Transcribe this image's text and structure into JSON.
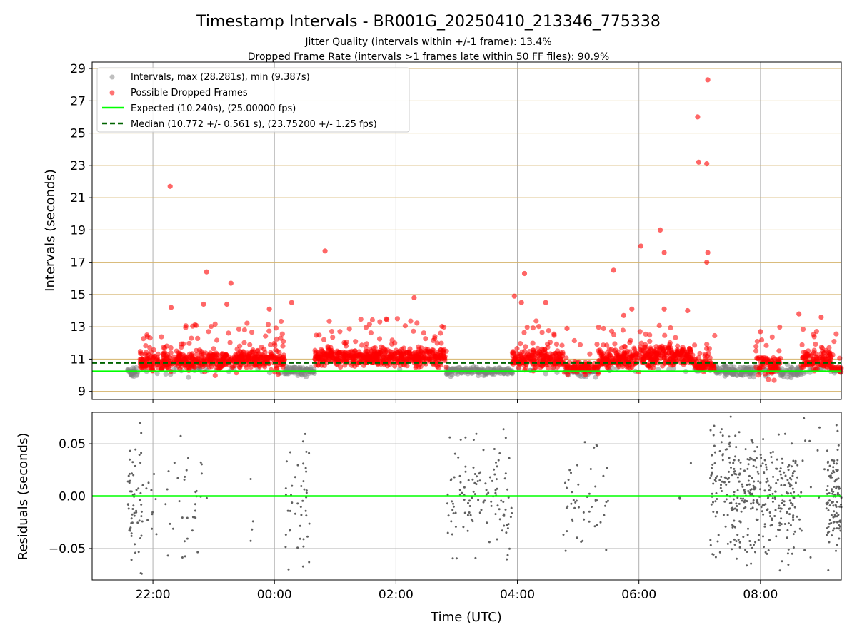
{
  "figure": {
    "title": "Timestamp Intervals - BR001G_20250410_213346_775338",
    "subtitle_1": "Jitter Quality (intervals within +/-1 frame): 13.4%",
    "subtitle_2": "Dropped Frame Rate (intervals >1 frames late within 50 FF files): 90.9%"
  },
  "colors": {
    "intervals": "#808080",
    "dropped": "#ff0000",
    "expected": "#00ff00",
    "median": "#006400",
    "hgrid_top": "#d4b26a",
    "grid": "#b0b0b0",
    "residuals": "#606060"
  },
  "chart_data": [
    {
      "type": "scatter",
      "ylabel": "Intervals (seconds)",
      "xlim_hours": [
        21.0,
        33.33
      ],
      "ylim": [
        8.5,
        29.4
      ],
      "yticks": [
        9,
        11,
        13,
        15,
        17,
        19,
        21,
        23,
        25,
        27,
        29
      ],
      "grid": true,
      "legend_position": "top-left",
      "legend": [
        "Intervals, max (28.281s), min (9.387s)",
        "Possible Dropped Frames",
        "Expected (10.240s), (25.00000 fps)",
        "Median (10.772 +/- 0.561 s), (23.75200 +/- 1.25 fps)"
      ],
      "expected_interval": 10.24,
      "median_interval": 10.772,
      "series": [
        {
          "name": "Intervals, max (28.281s), min (9.387s)",
          "marker": "circle",
          "color": "#808080"
        },
        {
          "name": "Possible Dropped Frames",
          "marker": "circle",
          "color": "#ff0000"
        }
      ],
      "density_segments": [
        {
          "start": "21:35",
          "end": "21:47",
          "mean": 10.2,
          "spread": 0.25,
          "late": false
        },
        {
          "start": "21:47",
          "end": "23:10",
          "mean": 10.85,
          "spread": 0.55,
          "late": true
        },
        {
          "start": "23:10",
          "end": "23:55",
          "mean": 11.0,
          "spread": 0.5,
          "late": true
        },
        {
          "start": "23:55",
          "end": "00:10",
          "mean": 10.95,
          "spread": 0.55,
          "late": true
        },
        {
          "start": "00:10",
          "end": "00:40",
          "mean": 10.25,
          "spread": 0.2,
          "late": false
        },
        {
          "start": "00:40",
          "end": "02:50",
          "mean": 11.15,
          "spread": 0.45,
          "late": true
        },
        {
          "start": "02:50",
          "end": "03:55",
          "mean": 10.25,
          "spread": 0.2,
          "late": false
        },
        {
          "start": "03:55",
          "end": "04:45",
          "mean": 11.0,
          "spread": 0.55,
          "late": true
        },
        {
          "start": "04:45",
          "end": "05:20",
          "mean": 10.4,
          "spread": 0.35,
          "late": true
        },
        {
          "start": "05:20",
          "end": "06:00",
          "mean": 11.0,
          "spread": 0.55,
          "late": true
        },
        {
          "start": "06:00",
          "end": "06:55",
          "mean": 11.2,
          "spread": 0.55,
          "late": true
        },
        {
          "start": "06:55",
          "end": "07:15",
          "mean": 10.6,
          "spread": 0.4,
          "late": true
        },
        {
          "start": "07:15",
          "end": "07:55",
          "mean": 10.25,
          "spread": 0.3,
          "late": false
        },
        {
          "start": "07:55",
          "end": "08:20",
          "mean": 10.6,
          "spread": 0.5,
          "late": true
        },
        {
          "start": "08:20",
          "end": "08:40",
          "mean": 10.2,
          "spread": 0.25,
          "late": false
        },
        {
          "start": "08:40",
          "end": "09:10",
          "mean": 10.85,
          "spread": 0.55,
          "late": true
        },
        {
          "start": "09:10",
          "end": "09:20",
          "mean": 10.35,
          "spread": 0.2,
          "late": true
        }
      ],
      "outliers": [
        {
          "x": "22:17",
          "y": 21.7
        },
        {
          "x": "22:53",
          "y": 16.4
        },
        {
          "x": "23:17",
          "y": 15.7
        },
        {
          "x": "22:50",
          "y": 14.4
        },
        {
          "x": "23:13",
          "y": 14.4
        },
        {
          "x": "22:18",
          "y": 14.2
        },
        {
          "x": "00:17",
          "y": 14.5
        },
        {
          "x": "23:55",
          "y": 14.1
        },
        {
          "x": "00:50",
          "y": 17.7
        },
        {
          "x": "02:18",
          "y": 14.8
        },
        {
          "x": "03:57",
          "y": 14.9
        },
        {
          "x": "04:07",
          "y": 16.3
        },
        {
          "x": "04:04",
          "y": 14.5
        },
        {
          "x": "04:28",
          "y": 14.5
        },
        {
          "x": "05:35",
          "y": 16.5
        },
        {
          "x": "06:02",
          "y": 18.0
        },
        {
          "x": "06:21",
          "y": 19.0
        },
        {
          "x": "06:25",
          "y": 17.6
        },
        {
          "x": "05:53",
          "y": 14.1
        },
        {
          "x": "06:25",
          "y": 14.1
        },
        {
          "x": "06:48",
          "y": 14.0
        },
        {
          "x": "06:58",
          "y": 26.0
        },
        {
          "x": "06:59",
          "y": 23.2
        },
        {
          "x": "07:08",
          "y": 28.3
        },
        {
          "x": "07:07",
          "y": 23.1
        },
        {
          "x": "07:08",
          "y": 17.6
        },
        {
          "x": "07:07",
          "y": 17.0
        },
        {
          "x": "08:38",
          "y": 13.8
        },
        {
          "x": "09:00",
          "y": 13.6
        },
        {
          "x": "08:00",
          "y": 12.7
        },
        {
          "x": "05:45",
          "y": 13.7
        },
        {
          "x": "04:49",
          "y": 12.9
        }
      ]
    },
    {
      "type": "scatter",
      "xlabel": "Time (UTC)",
      "ylabel": "Residuals (seconds)",
      "ylim": [
        -0.08,
        0.08
      ],
      "yticks": [
        "0.05",
        "0.00",
        "−0.05"
      ],
      "xticks": [
        "22:00",
        "00:00",
        "02:00",
        "04:00",
        "06:00",
        "08:00"
      ],
      "zero_line": 0.0,
      "grid": true,
      "residual_clusters": [
        {
          "start": "21:35",
          "end": "21:50",
          "count": 60
        },
        {
          "start": "21:50",
          "end": "22:55",
          "count": 45
        },
        {
          "start": "23:35",
          "end": "23:40",
          "count": 4
        },
        {
          "start": "00:10",
          "end": "00:35",
          "count": 45
        },
        {
          "start": "02:50",
          "end": "03:55",
          "count": 120
        },
        {
          "start": "04:45",
          "end": "05:30",
          "count": 50
        },
        {
          "start": "06:30",
          "end": "06:55",
          "count": 3
        },
        {
          "start": "07:10",
          "end": "08:10",
          "count": 260
        },
        {
          "start": "08:10",
          "end": "08:35",
          "count": 110
        },
        {
          "start": "08:35",
          "end": "09:05",
          "count": 20
        },
        {
          "start": "09:05",
          "end": "09:20",
          "count": 110
        }
      ]
    }
  ]
}
